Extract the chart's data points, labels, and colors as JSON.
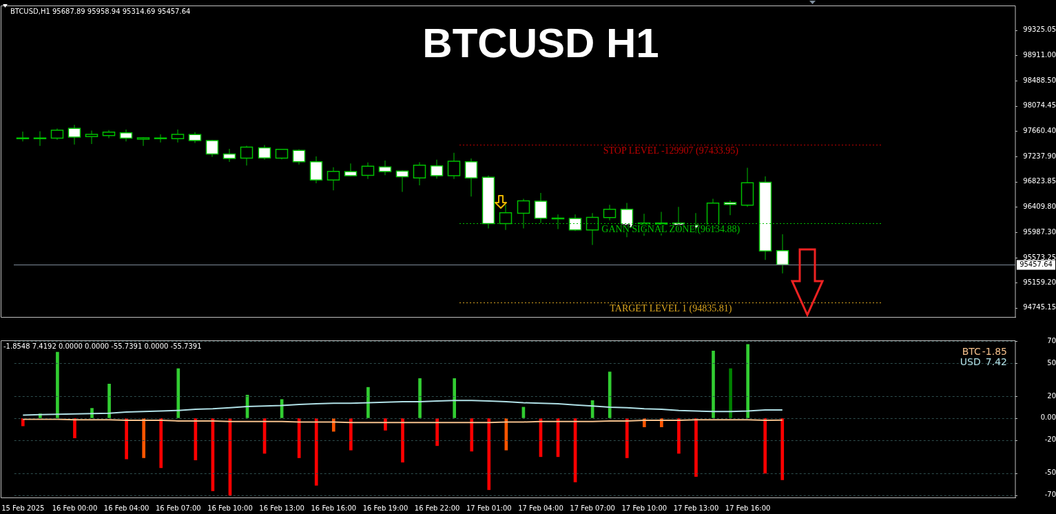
{
  "chart_data": [
    {
      "type": "candlestick",
      "title": "BTCUSD H1",
      "subtitle": "BTCUSD,H1 95687.89 95958.94 95314.69 95457.64",
      "categories": [
        null,
        null,
        null,
        null,
        null,
        null,
        null,
        null,
        null,
        null,
        null,
        null,
        null,
        null,
        null,
        null,
        null,
        null,
        null,
        null,
        null,
        null,
        null,
        null,
        null,
        null,
        null,
        null,
        null,
        null,
        null,
        null,
        null,
        null,
        null,
        null,
        null,
        null,
        null,
        null,
        null,
        null,
        null,
        null,
        null,
        null,
        null,
        null,
        null,
        null,
        null,
        null,
        null,
        null,
        null,
        null,
        null,
        null
      ],
      "ohlc": [
        [
          97540,
          97650,
          97490,
          97546
        ],
        [
          97543,
          97657,
          97416,
          97546
        ],
        [
          97543,
          97703,
          97515,
          97674
        ],
        [
          97706,
          97763,
          97437,
          97561
        ],
        [
          97568,
          97667,
          97448,
          97607
        ],
        [
          97586,
          97678,
          97543,
          97642
        ],
        [
          97632,
          97685,
          97490,
          97543
        ],
        [
          97526,
          97561,
          97416,
          97550
        ],
        [
          97543,
          97607,
          97472,
          97546
        ],
        [
          97536,
          97685,
          97472,
          97607
        ],
        [
          97603,
          97642,
          97465,
          97504
        ],
        [
          97504,
          97515,
          97235,
          97281
        ],
        [
          97281,
          97366,
          97150,
          97207
        ],
        [
          97214,
          97419,
          97093,
          97395
        ],
        [
          97384,
          97430,
          97189,
          97217
        ],
        [
          97214,
          97366,
          97193,
          97359
        ],
        [
          97341,
          97359,
          97108,
          97154
        ],
        [
          97154,
          97242,
          96799,
          96853
        ],
        [
          96853,
          97062,
          96683,
          96994
        ],
        [
          96991,
          97125,
          96913,
          96923
        ],
        [
          96930,
          97143,
          96870,
          97079
        ],
        [
          97069,
          97175,
          96934,
          96991
        ],
        [
          97001,
          97012,
          96658,
          96906
        ],
        [
          96888,
          97147,
          96764,
          97097
        ],
        [
          97086,
          97189,
          96877,
          96923
        ],
        [
          96923,
          97302,
          96870,
          97164
        ],
        [
          97154,
          97207,
          96580,
          96888
        ],
        [
          96899,
          96927,
          96056,
          96134
        ],
        [
          96134,
          96445,
          96031,
          96314
        ],
        [
          96304,
          96544,
          96056,
          96509
        ],
        [
          96505,
          96640,
          96144,
          96222
        ],
        [
          96222,
          96286,
          96045,
          96225
        ],
        [
          96219,
          96286,
          96013,
          96031
        ],
        [
          96031,
          96307,
          95783,
          96236
        ],
        [
          96233,
          96445,
          96190,
          96371
        ],
        [
          96371,
          96477,
          95910,
          96073
        ],
        [
          96119,
          96297,
          95932,
          96144
        ],
        [
          96127,
          96328,
          95939,
          96144
        ],
        [
          96144,
          96410,
          95985,
          96109
        ],
        [
          96109,
          96307,
          95978,
          96066
        ],
        [
          96066,
          96544,
          96049,
          96474
        ],
        [
          96481,
          96516,
          96275,
          96449
        ],
        [
          96438,
          97054,
          96410,
          96807
        ],
        [
          96817,
          96913,
          95535,
          95684
        ],
        [
          95687.89,
          95958.94,
          95314.69,
          95457.64
        ],
        null,
        null,
        null,
        null,
        null,
        null,
        null,
        null,
        null,
        null,
        null,
        null,
        null
      ],
      "ylim": [
        94596,
        99718
      ],
      "yticks": [
        94745.15,
        {
          "value": 95159.2,
          "label": "95159.20"
        },
        95573.25,
        {
          "value": 95987.3,
          "label": "95987.30"
        },
        {
          "value": 96409.8,
          "label": "96409.80"
        },
        96823.85,
        {
          "value": 97237.9,
          "label": "97237.90"
        },
        {
          "value": 97660.4,
          "label": "97660.40"
        },
        98074.45,
        {
          "value": 98488.5,
          "label": "98488.50"
        },
        {
          "value": 98911,
          "label": "98911.00"
        },
        99325.05
      ],
      "ref_lines": [
        {
          "axis": "y",
          "value": 97433.95,
          "label": "STOP LEVEL -129907 (97433.95)",
          "color": "#c00000",
          "line_style": "dotted"
        },
        {
          "axis": "y",
          "value": 96134.88,
          "label": "GANN SIGNAL ZONE (96134.88)",
          "color": "#00c000",
          "line_style": "dotted"
        },
        {
          "axis": "y",
          "value": 94835.81,
          "label": "TARGET LEVEL 1 (94835.81)",
          "color": "#daa520",
          "line_style": "dotted"
        },
        {
          "axis": "y",
          "value": 95457.64,
          "label": "95457.64",
          "color": "#7f8c9a",
          "line_style": "solid"
        }
      ]
    },
    {
      "type": "bar",
      "title": "-1.8548 7.4192 0.0000 0.0000 -55.7391 0.0000 -55.7391",
      "categories": [
        "15 Feb 2025",
        null,
        null,
        "16 Feb 00:00",
        null,
        null,
        "16 Feb 04:00",
        null,
        null,
        "16 Feb 07:00",
        null,
        null,
        "16 Feb 10:00",
        null,
        null,
        "16 Feb 13:00",
        null,
        null,
        "16 Feb 16:00",
        null,
        null,
        "16 Feb 19:00",
        null,
        null,
        "16 Feb 22:00",
        null,
        null,
        "17 Feb 01:00",
        null,
        null,
        "17 Feb 04:00",
        null,
        null,
        "17 Feb 07:00",
        null,
        null,
        "17 Feb 10:00",
        null,
        null,
        "17 Feb 13:00",
        null,
        null,
        "17 Feb 16:00",
        null,
        null,
        null,
        null,
        null,
        null,
        null,
        null,
        null,
        null,
        null,
        null,
        null,
        null,
        null
      ],
      "series": [
        {
          "type": "bar",
          "values": [
            -7,
            4,
            60,
            -18,
            9,
            31,
            -37,
            -36,
            -45,
            45,
            -38,
            -66,
            -70,
            21,
            -32,
            17,
            -36,
            -61,
            -12,
            -29,
            28,
            -11,
            -40,
            36,
            -25,
            36,
            -30,
            -65,
            -29,
            10,
            -35,
            -35,
            -58,
            16,
            42,
            -36,
            -8,
            -8,
            -32,
            -53,
            61,
            45,
            67,
            -50,
            -56,
            null,
            null,
            null,
            null,
            null,
            null,
            null,
            null,
            null,
            null,
            null,
            null,
            null
          ],
          "colors": [
            "#ff0000",
            "#32cd32",
            "#32cd32",
            "#ff0000",
            "#32cd32",
            "#32cd32",
            "#ff0000",
            "#ff5500",
            "#ff0000",
            "#32cd32",
            "#ff0000",
            "#ff0000",
            "#ff0000",
            "#32cd32",
            "#ff0000",
            "#32cd32",
            "#ff0000",
            "#ff0000",
            "#ff5500",
            "#ff0000",
            "#32cd32",
            "#ff0000",
            "#ff0000",
            "#32cd32",
            "#ff0000",
            "#32cd32",
            "#ff0000",
            "#ff0000",
            "#ff5500",
            "#32cd32",
            "#ff0000",
            "#ff0000",
            "#ff0000",
            "#32cd32",
            "#32cd32",
            "#ff0000",
            "#ff5500",
            "#ff5500",
            "#ff0000",
            "#ff0000",
            "#32cd32",
            "#008000",
            "#32cd32",
            "#ff0000",
            "#ff0000",
            null,
            null,
            null,
            null,
            null,
            null,
            null,
            null,
            null,
            null,
            null,
            null,
            null
          ]
        },
        {
          "type": "line",
          "name": "BTC",
          "color": "#f4c08c",
          "values": [
            -1,
            -1,
            -1,
            -1.5,
            -1.5,
            -1.5,
            -2,
            -2,
            -2,
            -2.5,
            -2.5,
            -2.5,
            -3,
            -3,
            -3,
            -3,
            -3.5,
            -3.5,
            -3.5,
            -4,
            -4,
            -4,
            -4,
            -4,
            -4,
            -4,
            -4,
            -4,
            -3.5,
            -3.5,
            -3,
            -3,
            -3,
            -3,
            -2.5,
            -2.5,
            -2,
            -2,
            -2,
            -1.5,
            -1.5,
            -1.5,
            -1.5,
            -2,
            -1.85,
            null,
            null,
            null,
            null,
            null,
            null,
            null,
            null,
            null,
            null,
            null,
            null,
            null
          ]
        },
        {
          "type": "line",
          "name": "USD",
          "color": "#b0e0e6",
          "values": [
            2.8,
            3.2,
            3.5,
            3.8,
            4.2,
            4.5,
            5.5,
            6,
            6.5,
            7,
            8,
            8.5,
            9.5,
            10.5,
            11,
            11.5,
            12.5,
            13,
            13.5,
            13.5,
            14,
            14.5,
            15,
            15,
            15.5,
            16,
            16,
            15.5,
            15,
            14,
            13.5,
            13,
            12,
            11,
            10,
            9.5,
            8.5,
            8,
            7,
            6.5,
            6,
            6,
            6.5,
            7.5,
            7.42,
            null,
            null,
            null,
            null,
            null,
            null,
            null,
            null,
            null,
            null,
            null,
            null,
            null
          ]
        }
      ],
      "annotations": [
        "-1.85",
        "7.42"
      ],
      "ylim": [
        -72,
        70
      ],
      "yticks": [
        70,
        50,
        20,
        {
          "value": 0,
          "label": "0.00"
        },
        -20,
        -50,
        -70
      ],
      "grid": "y",
      "legend": "top right"
    }
  ]
}
